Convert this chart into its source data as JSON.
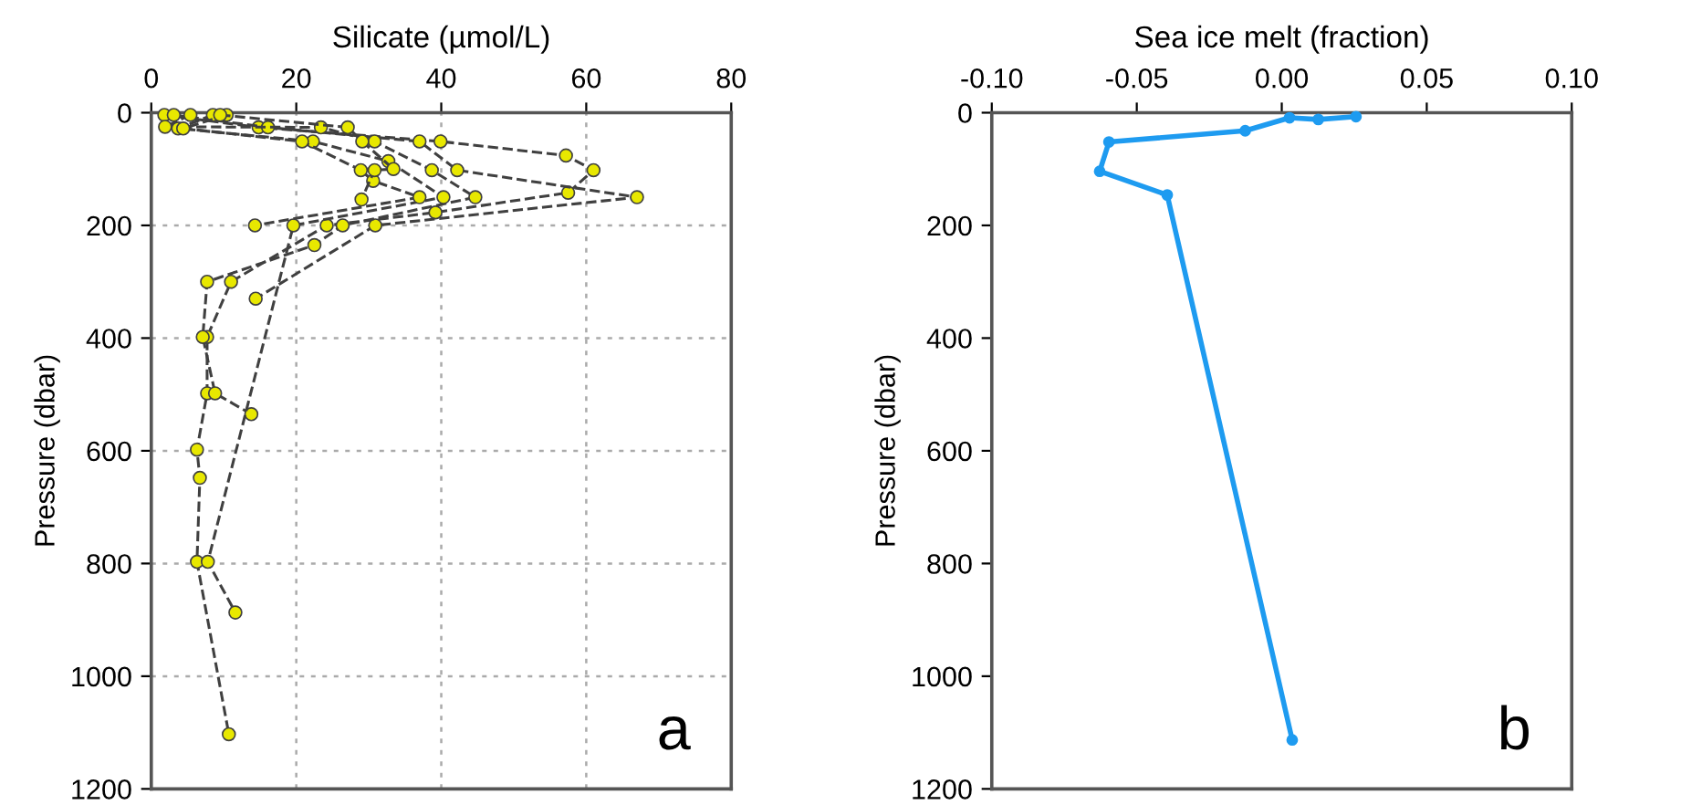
{
  "chart_data": [
    {
      "type": "line",
      "xlabel": "Silicate (µmol/L)",
      "ylabel": "Pressure (dbar)",
      "xlim": [
        0,
        80
      ],
      "xticks": [
        0,
        20,
        40,
        60,
        80
      ],
      "ylim": [
        1200,
        0
      ],
      "yticks": [
        0,
        200,
        400,
        600,
        800,
        1000,
        1200
      ],
      "grid": true,
      "marker": "circle",
      "line_style": "dashed",
      "legend": false,
      "annotations": [
        "a"
      ],
      "series": [
        {
          "color": "#404040",
          "x": [
            1.8,
            14.8,
            39.9,
            57.2,
            61,
            57.5,
            39.2,
            24.2,
            11,
            7.7,
            7.7,
            6.3,
            6.7,
            6.3,
            10.7
          ],
          "values": [
            4,
            26,
            51,
            76,
            102,
            142,
            177,
            200,
            300,
            398,
            498,
            598,
            648,
            797,
            1103
          ]
        },
        {
          "color": "#404040",
          "x": [
            3.1,
            16.1,
            37,
            42.2,
            67,
            30.9,
            14.4
          ],
          "values": [
            4,
            26,
            51,
            102,
            150,
            200,
            330
          ]
        },
        {
          "color": "#404040",
          "x": [
            5.4,
            1.9,
            23.4,
            30.8,
            38.7,
            44.7,
            26.4,
            22.5,
            7.7,
            7.1,
            8.8,
            13.8
          ],
          "values": [
            4,
            25,
            26,
            51,
            102,
            150,
            200,
            235,
            300,
            398,
            498,
            535
          ]
        },
        {
          "color": "#404040",
          "x": [
            8.5,
            3.7,
            22.3,
            32.7,
            40.3,
            19.6,
            7.8,
            11.6
          ],
          "values": [
            4,
            28,
            51,
            86,
            150,
            200,
            797,
            887
          ]
        },
        {
          "color": "#404040",
          "x": [
            10.4,
            4.4,
            20.8,
            28.9,
            30.6,
            37,
            14.3
          ],
          "values": [
            4,
            28,
            51,
            102,
            121,
            150,
            200
          ]
        },
        {
          "color": "#404040",
          "x": [
            9.5,
            27.1,
            29.1,
            33.4,
            30.8,
            29
          ],
          "values": [
            4,
            26,
            51,
            100,
            102,
            154
          ]
        }
      ]
    },
    {
      "type": "line",
      "xlabel": "Sea ice melt (fraction)",
      "ylabel": "Pressure (dbar)",
      "xlim": [
        -0.1,
        0.1
      ],
      "xticks": [
        {
          "value": -0.1,
          "label": "-0.10"
        },
        {
          "value": -0.05,
          "label": "-0.05"
        },
        {
          "value": 0,
          "label": "0.00"
        },
        {
          "value": 0.05,
          "label": "0.05"
        },
        {
          "value": 0.1,
          "label": "0.10"
        }
      ],
      "ylim": [
        1200,
        0
      ],
      "yticks": [
        0,
        200,
        400,
        600,
        800,
        1000,
        1200
      ],
      "grid": false,
      "marker": "circle",
      "line_style": "solid",
      "legend": false,
      "annotations": [
        "b"
      ],
      "series": [
        {
          "color": "#1e9bf0",
          "x": [
            0.0256,
            0.0126,
            0.0027,
            -0.0126,
            -0.0596,
            -0.0628,
            -0.0395,
            0.0036
          ],
          "values": [
            7,
            12,
            9,
            32,
            52,
            104,
            146,
            1113
          ]
        }
      ]
    }
  ]
}
